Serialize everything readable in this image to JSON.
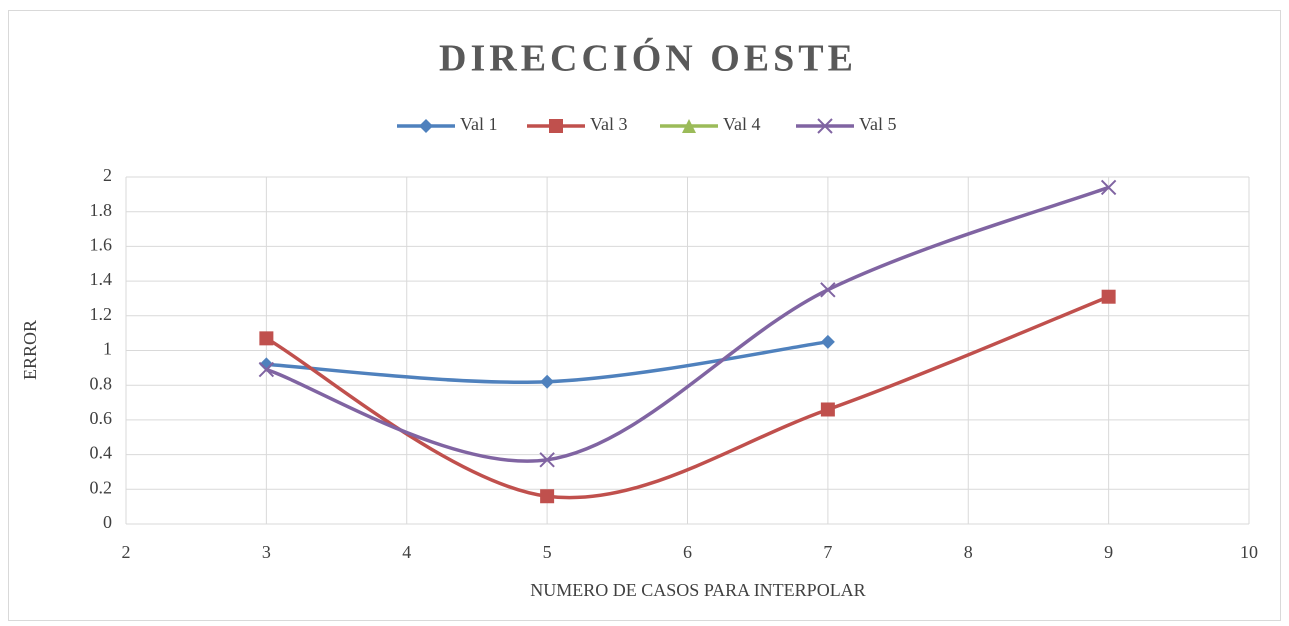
{
  "chart_data": {
    "type": "scatter-smooth",
    "title": "DIRECCIÓN OESTE",
    "x_label": "NUMERO DE CASOS PARA INTERPOLAR",
    "y_label": "ERROR",
    "x": [
      3,
      5,
      7,
      9
    ],
    "series": [
      {
        "name": "Val 1",
        "color": "#4f81bd",
        "marker": "diamond",
        "values": [
          0.92,
          0.82,
          1.05,
          null
        ]
      },
      {
        "name": "Val 3",
        "color": "#c0504d",
        "marker": "square",
        "values": [
          1.07,
          0.16,
          0.66,
          1.31
        ]
      },
      {
        "name": "Val 4",
        "color": "#9bbb59",
        "marker": "triangle",
        "values": [
          null,
          null,
          null,
          null
        ]
      },
      {
        "name": "Val 5",
        "color": "#8064a2",
        "marker": "x",
        "values": [
          0.89,
          0.37,
          1.35,
          1.94
        ]
      }
    ],
    "xlim": [
      2,
      10
    ],
    "xticks": [
      2,
      3,
      4,
      5,
      6,
      7,
      8,
      9,
      10
    ],
    "ylim": [
      0,
      2
    ],
    "yticks": [
      0,
      0.2,
      0.4,
      0.6,
      0.8,
      1,
      1.2,
      1.4,
      1.6,
      1.8,
      2
    ],
    "grid": true,
    "legend": "top"
  }
}
